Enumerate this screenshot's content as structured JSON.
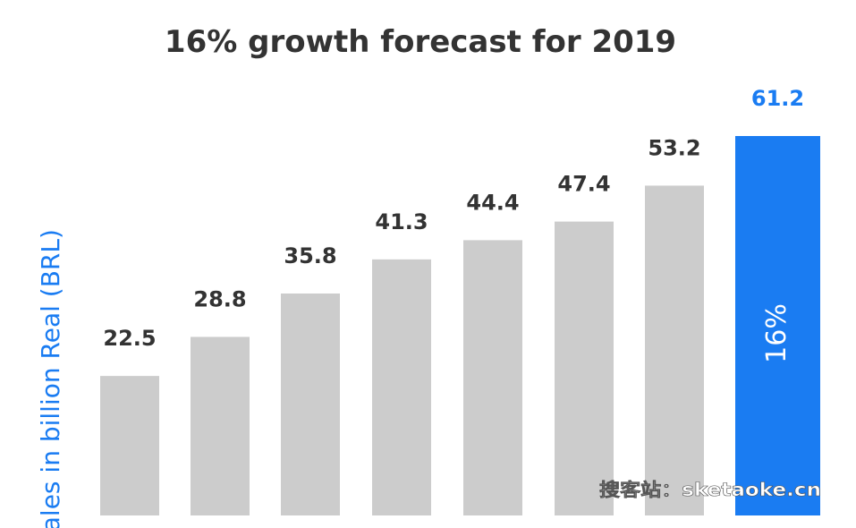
{
  "chart_data": {
    "type": "bar",
    "title": "16% growth forecast for 2019",
    "ylabel": "Sales in billion Real (BRL)",
    "xlabel": "",
    "categories": [
      "",
      "",
      "",
      "",
      "",
      "",
      "",
      ""
    ],
    "values": [
      22.5,
      28.8,
      35.8,
      41.3,
      44.4,
      47.4,
      53.2,
      61.2
    ],
    "value_labels": [
      "22.5",
      "28.8",
      "35.8",
      "41.3",
      "44.4",
      "47.4",
      "53.2",
      "61.2"
    ],
    "highlight_index": 7,
    "highlight_inner_label": "16%",
    "ylim": [
      0,
      61.2
    ],
    "grid": false,
    "legend": "none",
    "colors": {
      "bar": "#cccccc",
      "highlight_bar": "#1a7cf2",
      "highlight_label": "#1a7cf2",
      "value_label": "#333333",
      "title": "#333333",
      "ylabel": "#1a7cf2",
      "inner_label": "#ffffff"
    }
  },
  "watermark": {
    "text": "搜客站：sketaoke.cn"
  }
}
